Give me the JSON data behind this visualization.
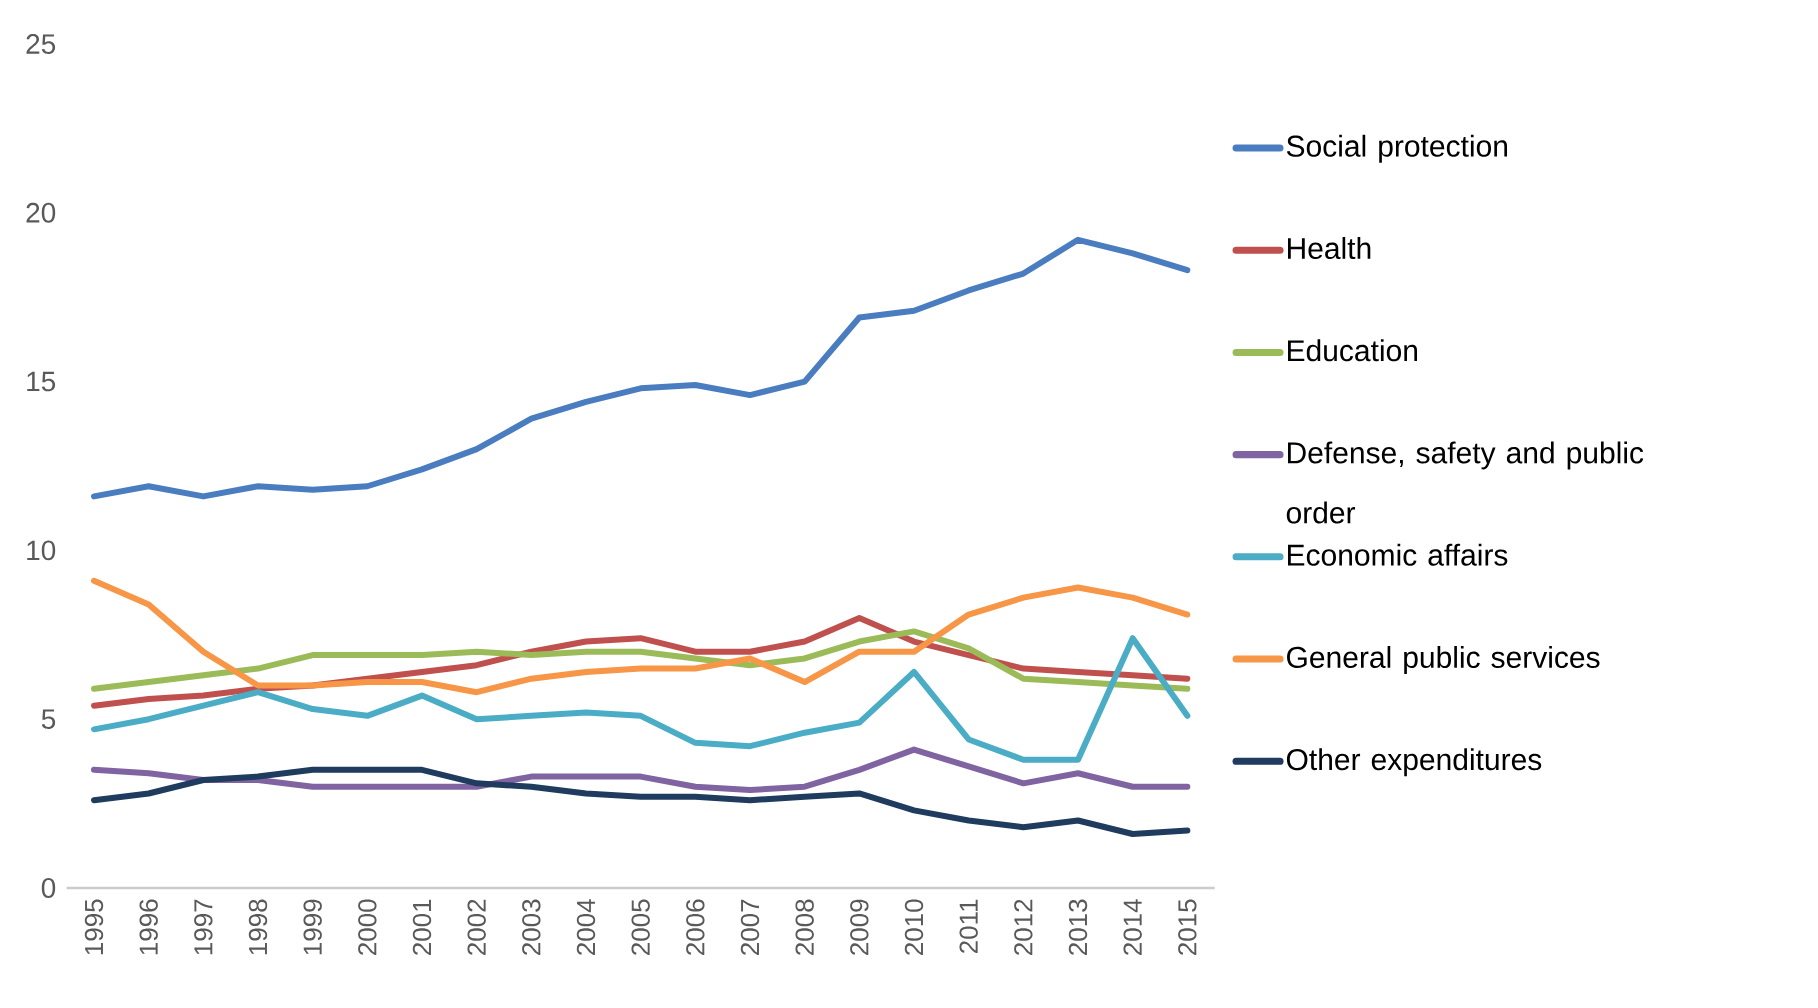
{
  "chart_data": {
    "type": "line",
    "categories": [
      "1995",
      "1996",
      "1997",
      "1998",
      "1999",
      "2000",
      "2001",
      "2002",
      "2003",
      "2004",
      "2005",
      "2006",
      "2007",
      "2008",
      "2009",
      "2010",
      "2011",
      "2012",
      "2013",
      "2014",
      "2015"
    ],
    "series": [
      {
        "name": "Social protection",
        "color": "#4a7cc0",
        "values": [
          11.6,
          11.9,
          11.6,
          11.9,
          11.8,
          11.9,
          12.4,
          13.0,
          13.9,
          14.4,
          14.8,
          14.9,
          14.6,
          15.0,
          16.9,
          17.1,
          17.7,
          18.2,
          19.2,
          18.8,
          18.3
        ]
      },
      {
        "name": "Health",
        "color": "#c0504d",
        "values": [
          5.4,
          5.6,
          5.7,
          5.9,
          6.0,
          6.2,
          6.4,
          6.6,
          7.0,
          7.3,
          7.4,
          7.0,
          7.0,
          7.3,
          8.0,
          7.3,
          6.9,
          6.5,
          6.4,
          6.3,
          6.2
        ]
      },
      {
        "name": "Education",
        "color": "#9bbb59",
        "values": [
          5.9,
          6.1,
          6.3,
          6.5,
          6.9,
          6.9,
          6.9,
          7.0,
          6.9,
          7.0,
          7.0,
          6.8,
          6.6,
          6.8,
          7.3,
          7.6,
          7.1,
          6.2,
          6.1,
          6.0,
          5.9
        ]
      },
      {
        "name": "Defense, safety and public order",
        "color": "#8064a2",
        "values": [
          3.5,
          3.4,
          3.2,
          3.2,
          3.0,
          3.0,
          3.0,
          3.0,
          3.3,
          3.3,
          3.3,
          3.0,
          2.9,
          3.0,
          3.5,
          4.1,
          3.6,
          3.1,
          3.4,
          3.0,
          3.0
        ]
      },
      {
        "name": "Economic affairs",
        "color": "#4bacc6",
        "values": [
          4.7,
          5.0,
          5.4,
          5.8,
          5.3,
          5.1,
          5.7,
          5.0,
          5.1,
          5.2,
          5.1,
          4.3,
          4.2,
          4.6,
          4.9,
          6.4,
          4.4,
          3.8,
          3.8,
          7.4,
          5.1
        ]
      },
      {
        "name": "General public services",
        "color": "#f79646",
        "values": [
          9.1,
          8.4,
          7.0,
          6.0,
          6.0,
          6.1,
          6.1,
          5.8,
          6.2,
          6.4,
          6.5,
          6.5,
          6.8,
          6.1,
          7.0,
          7.0,
          8.1,
          8.6,
          8.9,
          8.6,
          8.1
        ]
      },
      {
        "name": "Other expenditures",
        "color": "#1f3b5e",
        "values": [
          2.6,
          2.8,
          3.2,
          3.3,
          3.5,
          3.5,
          3.5,
          3.1,
          3.0,
          2.8,
          2.7,
          2.7,
          2.6,
          2.7,
          2.8,
          2.3,
          2.0,
          1.8,
          2.0,
          1.6,
          1.7
        ]
      }
    ],
    "ylim": [
      0,
      25
    ],
    "yticks": [
      0,
      5,
      10,
      15,
      20,
      25
    ],
    "legend": "right",
    "grid": false
  }
}
